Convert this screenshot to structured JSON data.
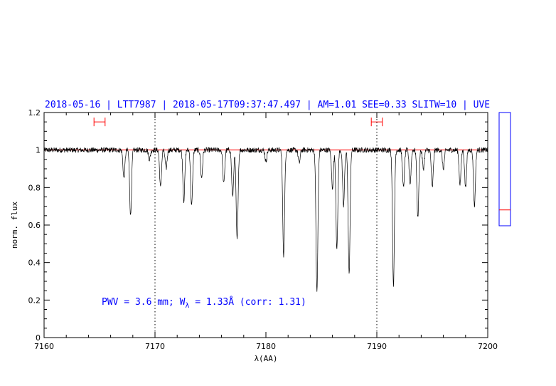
{
  "chart_data": {
    "type": "line",
    "title": "2018-05-16 | LTT7987 | 2018-05-17T09:37:47.497 | AM=1.01 SEE=0.33 SLITW=10 | UVE",
    "xlabel": "λ(AA)",
    "ylabel": "norm. flux",
    "xlim": [
      7160,
      7200
    ],
    "ylim": [
      0,
      1.2
    ],
    "x_ticks": [
      "7160",
      "7170",
      "7180",
      "7190",
      "7200"
    ],
    "y_ticks": [
      "0",
      "0.2",
      "0.4",
      "0.6",
      "0.8",
      "1",
      "1.2"
    ],
    "continuum_level": 1.0,
    "vertical_markers": [
      7170,
      7190
    ],
    "ranges": [
      {
        "from": 7164.5,
        "to": 7165.5,
        "y": 1.15
      },
      {
        "from": 7189.5,
        "to": 7190.5,
        "y": 1.15
      }
    ],
    "annotation": {
      "prefix": "PWV = 3.6 mm; W",
      "subscript": "λ",
      "suffix": " = 1.33Å (corr: 1.31)"
    },
    "absorption_lines": [
      {
        "x": 7167.2,
        "depth": 0.15
      },
      {
        "x": 7167.8,
        "depth": 0.35
      },
      {
        "x": 7169.5,
        "depth": 0.05
      },
      {
        "x": 7170.5,
        "depth": 0.2
      },
      {
        "x": 7171.0,
        "depth": 0.1
      },
      {
        "x": 7172.6,
        "depth": 0.27
      },
      {
        "x": 7173.3,
        "depth": 0.3
      },
      {
        "x": 7174.2,
        "depth": 0.15
      },
      {
        "x": 7176.2,
        "depth": 0.18
      },
      {
        "x": 7177.0,
        "depth": 0.25
      },
      {
        "x": 7177.4,
        "depth": 0.48
      },
      {
        "x": 7180.0,
        "depth": 0.06
      },
      {
        "x": 7181.6,
        "depth": 0.56
      },
      {
        "x": 7183.0,
        "depth": 0.07
      },
      {
        "x": 7184.6,
        "depth": 0.76
      },
      {
        "x": 7186.0,
        "depth": 0.2
      },
      {
        "x": 7186.4,
        "depth": 0.53
      },
      {
        "x": 7187.0,
        "depth": 0.3
      },
      {
        "x": 7187.5,
        "depth": 0.66
      },
      {
        "x": 7191.5,
        "depth": 0.72
      },
      {
        "x": 7192.4,
        "depth": 0.2
      },
      {
        "x": 7193.0,
        "depth": 0.18
      },
      {
        "x": 7193.7,
        "depth": 0.36
      },
      {
        "x": 7194.2,
        "depth": 0.1
      },
      {
        "x": 7195.0,
        "depth": 0.2
      },
      {
        "x": 7196.0,
        "depth": 0.1
      },
      {
        "x": 7197.5,
        "depth": 0.18
      },
      {
        "x": 7198.0,
        "depth": 0.2
      },
      {
        "x": 7198.8,
        "depth": 0.3
      }
    ],
    "side_panel": {
      "ylim": [
        0,
        1
      ],
      "marker": 0.14
    }
  },
  "colors": {
    "title": "#0000ff",
    "annotation": "#0000ff",
    "spectrum": "#000000",
    "continuum": "#ff0000",
    "range_markers": "#ff0000",
    "side_panel_border": "#0000ff",
    "side_panel_marker": "#ff0000"
  }
}
